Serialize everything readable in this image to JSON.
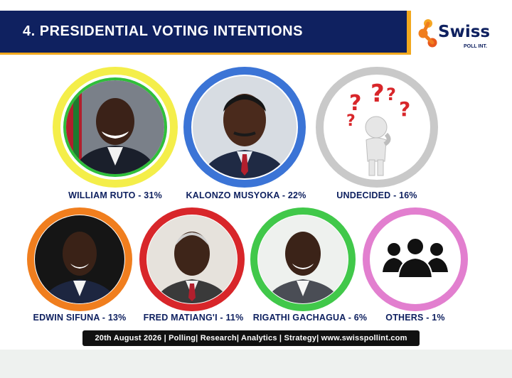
{
  "header": {
    "title": "4. PRESIDENTIAL VOTING INTENTIONS"
  },
  "logo": {
    "name": "Swiss",
    "subtitle": "POLL INT."
  },
  "colors": {
    "navy": "#0f2160",
    "orange": "#f2a81d"
  },
  "candidates": [
    {
      "label": "WILLIAM RUTO - 31%",
      "name": "WILLIAM RUTO",
      "share_pct": 31,
      "ring_color": "#f4ee4a",
      "icon": "portrait"
    },
    {
      "label": "KALONZO MUSYOKA - 22%",
      "name": "KALONZO MUSYOKA",
      "share_pct": 22,
      "ring_color": "#3b74d6",
      "icon": "portrait"
    },
    {
      "label": "UNDECIDED - 16%",
      "name": "UNDECIDED",
      "share_pct": 16,
      "ring_color": "#c9c9c9",
      "icon": "thinking-figure-question-marks-icon"
    },
    {
      "label": "EDWIN SIFUNA - 13%",
      "name": "EDWIN SIFUNA",
      "share_pct": 13,
      "ring_color": "#f07e1e",
      "icon": "portrait"
    },
    {
      "label": "FRED MATIANG'I - 11%",
      "name": "FRED MATIANG'I",
      "share_pct": 11,
      "ring_color": "#d8262a",
      "icon": "portrait"
    },
    {
      "label": "RIGATHI GACHAGUA - 6%",
      "name": "RIGATHI GACHAGUA",
      "share_pct": 6,
      "ring_color": "#41c84a",
      "icon": "portrait"
    },
    {
      "label": "OTHERS - 1%",
      "name": "OTHERS",
      "share_pct": 1,
      "ring_color": "#e27fcf",
      "icon": "people-group-icon"
    }
  ],
  "footer": {
    "text": "20th August 2026 | Polling| Research| Analytics | Strategy| www.swisspollint.com"
  }
}
